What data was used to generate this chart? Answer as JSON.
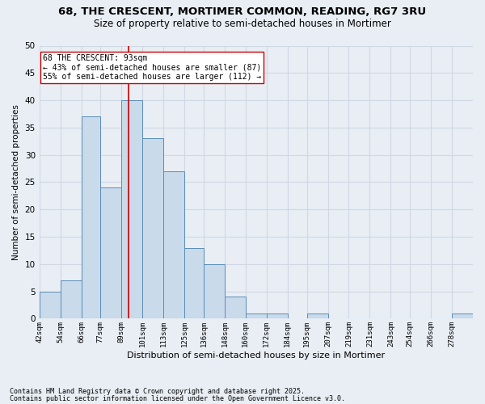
{
  "title_line1": "68, THE CRESCENT, MORTIMER COMMON, READING, RG7 3RU",
  "title_line2": "Size of property relative to semi-detached houses in Mortimer",
  "xlabel": "Distribution of semi-detached houses by size in Mortimer",
  "ylabel": "Number of semi-detached properties",
  "bin_labels": [
    "42sqm",
    "54sqm",
    "66sqm",
    "77sqm",
    "89sqm",
    "101sqm",
    "113sqm",
    "125sqm",
    "136sqm",
    "148sqm",
    "160sqm",
    "172sqm",
    "184sqm",
    "195sqm",
    "207sqm",
    "219sqm",
    "231sqm",
    "243sqm",
    "254sqm",
    "266sqm",
    "278sqm"
  ],
  "values": [
    5,
    7,
    37,
    24,
    40,
    33,
    27,
    13,
    10,
    4,
    1,
    1,
    0,
    1,
    0,
    0,
    0,
    0,
    0,
    0,
    1
  ],
  "bar_color": "#c9daea",
  "bar_edge_color": "#5b8db8",
  "grid_color": "#d0d8e4",
  "background_color": "#e8eef4",
  "vline_x": 93,
  "vline_color": "#cc0000",
  "property_size": 93,
  "pct_smaller": 43,
  "n_smaller": 87,
  "pct_larger": 55,
  "n_larger": 112,
  "annotation_label": "68 THE CRESCENT: 93sqm",
  "annotation_box_color": "#ffffff",
  "annotation_box_edge": "#cc0000",
  "ylim": [
    0,
    50
  ],
  "yticks": [
    0,
    5,
    10,
    15,
    20,
    25,
    30,
    35,
    40,
    45,
    50
  ],
  "footnote1": "Contains HM Land Registry data © Crown copyright and database right 2025.",
  "footnote2": "Contains public sector information licensed under the Open Government Licence v3.0.",
  "bin_edges": [
    42,
    54,
    66,
    77,
    89,
    101,
    113,
    125,
    136,
    148,
    160,
    172,
    184,
    195,
    207,
    219,
    231,
    243,
    254,
    266,
    278,
    290
  ]
}
